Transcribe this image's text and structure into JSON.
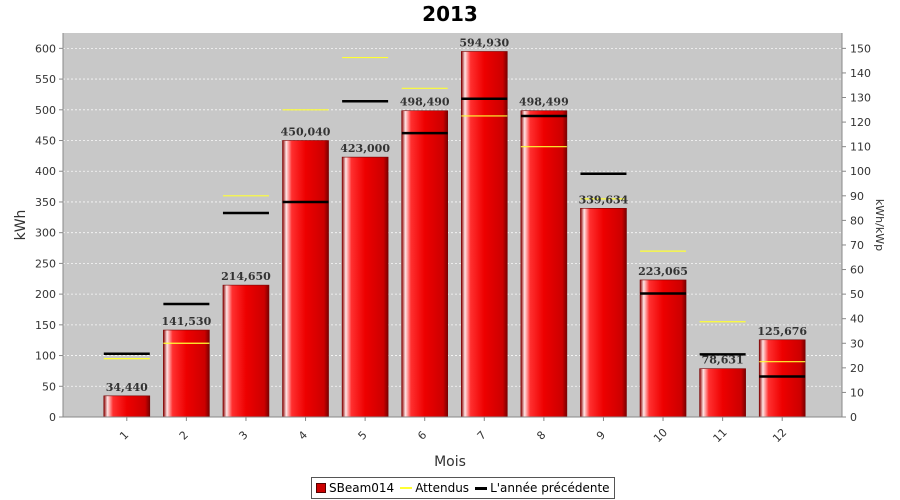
{
  "colors": {
    "bar": "#e60000",
    "attendus": "#ffff33",
    "previous": "#000000",
    "plot_bg": "#c8c8c8"
  },
  "chart_data": {
    "type": "bar",
    "title": "2013",
    "xlabel": "Mois",
    "ylabel": "kWh",
    "y2label": "kWh/kWp",
    "ylim": [
      0,
      625
    ],
    "y2lim": [
      0,
      156.25
    ],
    "yticks": [
      0,
      50,
      100,
      150,
      200,
      250,
      300,
      350,
      400,
      450,
      500,
      550,
      600
    ],
    "y2ticks": [
      0,
      10,
      20,
      30,
      40,
      50,
      60,
      70,
      80,
      90,
      100,
      110,
      120,
      130,
      140,
      150
    ],
    "grid": true,
    "legend_position": "bottom",
    "categories": [
      "1",
      "2",
      "3",
      "4",
      "5",
      "6",
      "7",
      "8",
      "9",
      "10",
      "11",
      "12"
    ],
    "series": [
      {
        "name": "SBeam014",
        "type": "bar",
        "values": [
          34.44,
          141.53,
          214.65,
          450.04,
          423.0,
          498.49,
          594.93,
          498.499,
          339.634,
          223.065,
          78.631,
          125.676
        ],
        "labels": [
          "34,440",
          "141,530",
          "214,650",
          "450,040",
          "423,000",
          "498,490",
          "594,930",
          "498,499",
          "339,634",
          "223,065",
          "78,631",
          "125,676"
        ]
      },
      {
        "name": "Attendus",
        "type": "marker",
        "values": [
          95,
          120,
          360,
          500,
          585,
          535,
          490,
          440,
          355,
          270,
          155,
          90
        ]
      },
      {
        "name": "L'année précédente",
        "type": "marker",
        "values": [
          103,
          184,
          332,
          350,
          514,
          462,
          518,
          490,
          396,
          201,
          102,
          66
        ]
      }
    ]
  }
}
